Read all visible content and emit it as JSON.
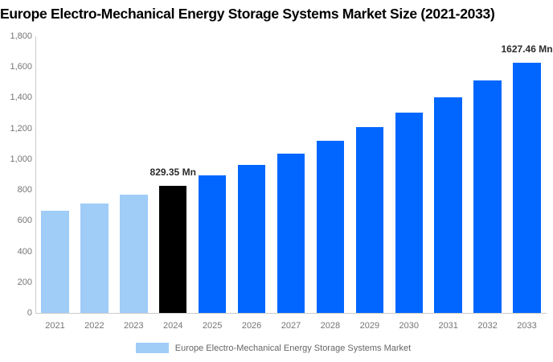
{
  "title": "Europe Electro-Mechanical Energy Storage Systems Market Size (2021-2033)",
  "colors": {
    "bar_light_blue": "#a0ccf8",
    "bar_highlight_black": "#000000",
    "bar_primary_blue": "#0066ff",
    "axis_line": "#cccccc",
    "tick_text": "#757575",
    "legend_text": "#666666",
    "annotation_text": "#2b2b2b",
    "title_text": "#000000"
  },
  "chart_data": {
    "type": "bar",
    "title": "Europe Electro-Mechanical Energy Storage Systems Market Size (2021-2033)",
    "xlabel": "",
    "ylabel": "",
    "categories": [
      "2021",
      "2022",
      "2023",
      "2024",
      "2025",
      "2026",
      "2027",
      "2028",
      "2029",
      "2030",
      "2031",
      "2032",
      "2033"
    ],
    "values": [
      662,
      714,
      769.5,
      829.35,
      894,
      963.6,
      1038.6,
      1119.4,
      1206.5,
      1300.4,
      1401.6,
      1510.7,
      1627.46
    ],
    "bar_colors": [
      "#a0ccf8",
      "#a0ccf8",
      "#a0ccf8",
      "#000000",
      "#0066ff",
      "#0066ff",
      "#0066ff",
      "#0066ff",
      "#0066ff",
      "#0066ff",
      "#0066ff",
      "#0066ff",
      "#0066ff"
    ],
    "ylim": [
      0,
      1800
    ],
    "yticks": [
      {
        "value": 0,
        "label": "0"
      },
      {
        "value": 200,
        "label": "200"
      },
      {
        "value": 400,
        "label": "400"
      },
      {
        "value": 600,
        "label": "600"
      },
      {
        "value": 800,
        "label": "800"
      },
      {
        "value": 1000,
        "label": "1,000"
      },
      {
        "value": 1200,
        "label": "1,200"
      },
      {
        "value": 1400,
        "label": "1,400"
      },
      {
        "value": 1600,
        "label": "1,600"
      },
      {
        "value": 1800,
        "label": "1,800"
      }
    ],
    "grid": false,
    "annotations": [
      {
        "index": 3,
        "text": "829.35 Mn"
      },
      {
        "index": 12,
        "text": "1627.46 Mn"
      }
    ],
    "legend": {
      "position": "bottom-center",
      "label": "Europe Electro-Mechanical Energy Storage Systems Market",
      "swatch_color": "#a0ccf8"
    }
  }
}
